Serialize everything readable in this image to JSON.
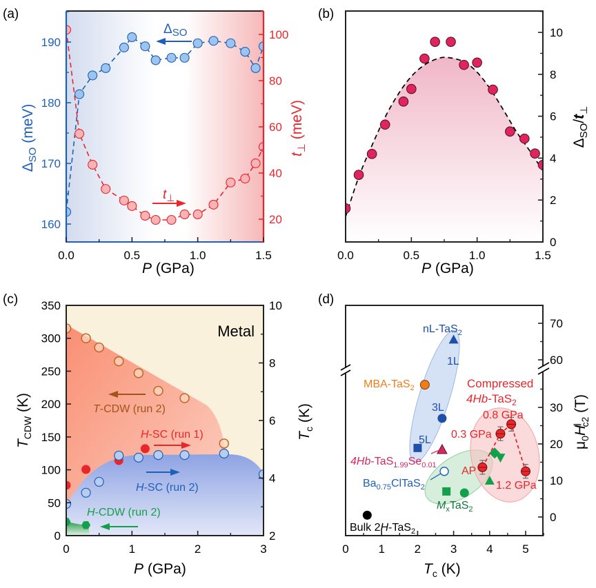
{
  "chart_data": [
    {
      "panel": "(a)",
      "type": "line",
      "xlabel": "P (GPa)",
      "xlim": [
        0,
        1.5
      ],
      "xticks": [
        "0.0",
        "0.5",
        "1.0",
        "1.5"
      ],
      "ylabel_left": "Δ_SO (meV)",
      "ylabel_left_main": "Δ",
      "ylabel_left_sub": "SO",
      "ylabel_left_unit": "(meV)",
      "ylim_left": [
        157,
        195
      ],
      "yticks_left": [
        "160",
        "170",
        "180",
        "190"
      ],
      "ylabel_right": "t⊥ (meV)",
      "ylabel_right_main": "t",
      "ylabel_right_sub": "⊥",
      "ylabel_right_unit": "(meV)",
      "ylim_right": [
        10,
        110
      ],
      "yticks_right": [
        "20",
        "40",
        "60",
        "80",
        "100"
      ],
      "background": "gradient blue (left) to white to red (right)",
      "series": [
        {
          "name": "Δ_SO",
          "label_main": "Δ",
          "label_sub": "SO",
          "axis": "left",
          "color": "#1f5fb8",
          "fill": "#9cc4ee",
          "arrow": "left",
          "x": [
            0.0,
            0.1,
            0.2,
            0.3,
            0.44,
            0.5,
            0.6,
            0.68,
            0.8,
            0.9,
            1.0,
            1.12,
            1.25,
            1.36,
            1.44,
            1.5
          ],
          "y": [
            162.0,
            181.4,
            184.5,
            185.7,
            189.1,
            190.8,
            189.3,
            187.0,
            187.4,
            187.4,
            189.8,
            190.2,
            189.8,
            188.4,
            185.7,
            189.3
          ]
        },
        {
          "name": "t⊥",
          "label_main": "t",
          "label_sub": "⊥",
          "axis": "right",
          "color": "#e8262b",
          "fill": "#f7b3b5",
          "arrow": "right",
          "x": [
            0.0,
            0.1,
            0.2,
            0.3,
            0.44,
            0.5,
            0.6,
            0.68,
            0.8,
            0.9,
            1.0,
            1.12,
            1.25,
            1.36,
            1.44,
            1.5
          ],
          "y": [
            102,
            57,
            43.6,
            33.1,
            28.1,
            25.7,
            21.5,
            19.7,
            19.7,
            22.1,
            22.1,
            26.3,
            35.9,
            37.6,
            44.2,
            51.3
          ]
        }
      ]
    },
    {
      "panel": "(b)",
      "type": "scatter",
      "xlabel": "P (GPa)",
      "xlim": [
        0,
        1.5
      ],
      "xticks": [
        "0.0",
        "0.5",
        "1.0",
        "1.5"
      ],
      "ylabel": "Δ_SO/t⊥",
      "ylabel_main": "Δ",
      "ylabel_sub": "SO",
      "ylabel_mid": "/",
      "ylabel_t": "t",
      "ylabel_sub2": "⊥",
      "ylim": [
        0,
        11
      ],
      "yticks": [
        "0",
        "2",
        "4",
        "6",
        "8",
        "10"
      ],
      "series": [
        {
          "name": "Δ_SO/t⊥",
          "color": "#e0245e",
          "x": [
            0.0,
            0.1,
            0.2,
            0.3,
            0.44,
            0.5,
            0.6,
            0.68,
            0.8,
            0.9,
            1.0,
            1.12,
            1.25,
            1.36,
            1.44,
            1.5
          ],
          "y": [
            1.6,
            3.2,
            4.2,
            5.6,
            6.7,
            7.3,
            8.75,
            9.55,
            9.55,
            8.45,
            8.56,
            7.27,
            5.27,
            4.93,
            4.22,
            3.68
          ]
        }
      ],
      "fit": {
        "name": "dashed guide",
        "color": "#000000",
        "x": [
          0.0,
          0.1,
          0.2,
          0.3,
          0.4,
          0.5,
          0.6,
          0.7,
          0.78,
          0.9,
          1.0,
          1.1,
          1.2,
          1.3,
          1.4,
          1.5
        ],
        "y": [
          1.2,
          3.1,
          4.6,
          5.95,
          7.05,
          7.9,
          8.45,
          8.75,
          8.8,
          8.6,
          8.1,
          7.3,
          6.3,
          5.25,
          4.35,
          3.4
        ]
      }
    },
    {
      "panel": "(c)",
      "type": "scatter",
      "xlabel": "P (GPa)",
      "xlim": [
        0,
        3
      ],
      "xticks": [
        "0",
        "1",
        "2",
        "3"
      ],
      "ylabel_left": "T_CDW (K)",
      "ylabel_left_main": "T",
      "ylabel_left_sub": "CDW",
      "ylabel_left_unit": "(K)",
      "ylim_left": [
        0,
        350
      ],
      "yticks_left": [
        "0",
        "50",
        "100",
        "150",
        "200",
        "250",
        "300",
        "350"
      ],
      "ylabel_right": "T_c (K)",
      "ylabel_right_main": "T",
      "ylabel_right_sub": "c",
      "ylabel_right_unit": "(K)",
      "ylim_right": [
        2,
        10
      ],
      "yticks_right": [
        "2",
        "4",
        "6",
        "8",
        "10"
      ],
      "region_label": "Metal",
      "series": [
        {
          "name": "T-CDW (run 2)",
          "label_italic": "T",
          "label_rest": "-CDW (run 2)",
          "axis": "left",
          "marker": "open-circle",
          "color": "#b8621b",
          "arrow": "left",
          "x": [
            0.0,
            0.3,
            0.5,
            0.8,
            1.1,
            1.4,
            1.8,
            2.4
          ],
          "y": [
            315,
            300,
            286,
            265,
            247,
            220,
            209,
            140
          ]
        },
        {
          "name": "H-SC (run 1)",
          "label_italic": "H",
          "label_rest": "-SC (run 1)",
          "axis": "right",
          "marker": "filled-circle",
          "color": "#e8262b",
          "arrow": "right",
          "x": [
            0.0,
            0.3,
            0.8,
            1.2
          ],
          "y": [
            3.75,
            4.3,
            4.61,
            5.02
          ]
        },
        {
          "name": "H-SC (run 2)",
          "label_italic": "H",
          "label_rest": "-SC (run 2)",
          "axis": "right",
          "marker": "light-circle",
          "color": "#1f5fb8",
          "arrow": "right",
          "x": [
            0.0,
            0.3,
            0.5,
            0.8,
            1.1,
            1.4,
            1.8,
            2.4,
            3.0
          ],
          "y": [
            3.1,
            3.49,
            3.87,
            4.78,
            4.71,
            4.8,
            4.8,
            4.85,
            4.13
          ]
        },
        {
          "name": "H-CDW (run 2)",
          "label_italic": "H",
          "label_rest": "-CDW (run 2)",
          "axis": "left",
          "marker": "hexagon",
          "color": "#13a04a",
          "arrow": "left",
          "x": [
            0.0,
            0.3
          ],
          "y": [
            21,
            16
          ]
        }
      ]
    },
    {
      "panel": "(d)",
      "type": "scatter",
      "xlabel": "T_c (K)",
      "xlabel_main": "T",
      "xlabel_sub": "c",
      "xlabel_unit": "(K)",
      "xlim": [
        0,
        5.5
      ],
      "xticks": [
        "0",
        "1",
        "2",
        "3",
        "4",
        "5"
      ],
      "ylabel": "μ0H∥c2 (T)",
      "ylabel_mu": "μ",
      "ylabel_0": "0",
      "ylabel_H": "H",
      "ylabel_par": "∥",
      "ylabel_c2": "c2",
      "ylabel_unit": "(T)",
      "ylim_lower": [
        -5,
        37
      ],
      "ylim_upper": [
        57,
        75
      ],
      "yticks": [
        "0",
        "10",
        "20",
        "30",
        "60",
        "70"
      ],
      "axis_break": true,
      "groups": [
        {
          "name": "nL-TaS2",
          "text": "nL-TaS",
          "sub": "2",
          "color": "#1f4fa8"
        },
        {
          "name": "Compressed 4Hb-TaS2",
          "line1": "Compressed",
          "line2_italic": "4Hb",
          "line2_rest": "-TaS",
          "line2_sub": "2",
          "color": "#e8262b"
        },
        {
          "name": "MxTaS2",
          "italic": "M",
          "sub_x": "x",
          "rest": "TaS",
          "sub": "2",
          "color": "#0f7a3a"
        }
      ],
      "points": [
        {
          "label": "1L",
          "x": 3.0,
          "y": 65.6,
          "marker": "triangle",
          "color": "#1f4fa8"
        },
        {
          "label": "MBA-TaS2",
          "text": "MBA-TaS",
          "sub": "2",
          "x": 2.2,
          "y": 36.2,
          "marker": "circle",
          "color": "#f07d1a"
        },
        {
          "label": "3L",
          "x": 2.68,
          "y": 27.0,
          "marker": "circle",
          "color": "#1f4fa8"
        },
        {
          "label": "5L",
          "x": 2.0,
          "y": 18.9,
          "marker": "square",
          "color": "#1f4fa8"
        },
        {
          "label": "4Hb-TaS1.99Se0.01",
          "italic": "4Hb",
          "t1": "-TaS",
          "s1": "1.99",
          "t2": "Se",
          "s2": "0.01",
          "x": 2.68,
          "y": 18.5,
          "marker": "triangle",
          "color": "#d8285e"
        },
        {
          "label": "Ba0.75ClTaS2",
          "t1": "Ba",
          "s1": "0.75",
          "t2": "ClTaS",
          "s2": "2",
          "x": 2.74,
          "y": 12.5,
          "marker": "open-circle",
          "color": "#1f5fb8"
        },
        {
          "label": "MxTaS2 square",
          "x": 2.8,
          "y": 7.0,
          "marker": "square",
          "color": "#13a04a"
        },
        {
          "label": "MxTaS2 circle",
          "x": 3.3,
          "y": 6.6,
          "marker": "circle",
          "color": "#13a04a"
        },
        {
          "label": "MxTaS2 triangle",
          "x": 4.0,
          "y": 10.0,
          "marker": "triangle",
          "color": "#13a04a"
        },
        {
          "label": "MxTaS2 diamond",
          "x": 4.14,
          "y": 17.5,
          "marker": "diamond",
          "color": "#13a04a"
        },
        {
          "label": "MxTaS2 down-triangle",
          "x": 4.3,
          "y": 16.2,
          "marker": "down-triangle",
          "color": "#13a04a"
        },
        {
          "label": "AP",
          "x": 3.8,
          "y": 13.6,
          "marker": "circle-err",
          "color": "#e8262b"
        },
        {
          "label": "0.3 GPa",
          "x": 4.3,
          "y": 22.8,
          "marker": "circle-err",
          "color": "#e8262b"
        },
        {
          "label": "0.8 GPa",
          "x": 4.6,
          "y": 25.4,
          "marker": "circle-err",
          "color": "#e8262b"
        },
        {
          "label": "1.2 GPa",
          "x": 5.0,
          "y": 12.5,
          "marker": "circle-err",
          "color": "#e8262b"
        },
        {
          "label": "Bulk 2H-TaS2",
          "t1": "Bulk 2",
          "italic": "H",
          "t2": "-TaS",
          "sub": "2",
          "x": 0.6,
          "y": 0.5,
          "marker": "circle",
          "color": "#000000"
        }
      ],
      "compressed_series": {
        "x": [
          3.8,
          4.3,
          4.6,
          5.0
        ],
        "y": [
          13.6,
          22.8,
          25.4,
          12.5
        ]
      }
    }
  ]
}
